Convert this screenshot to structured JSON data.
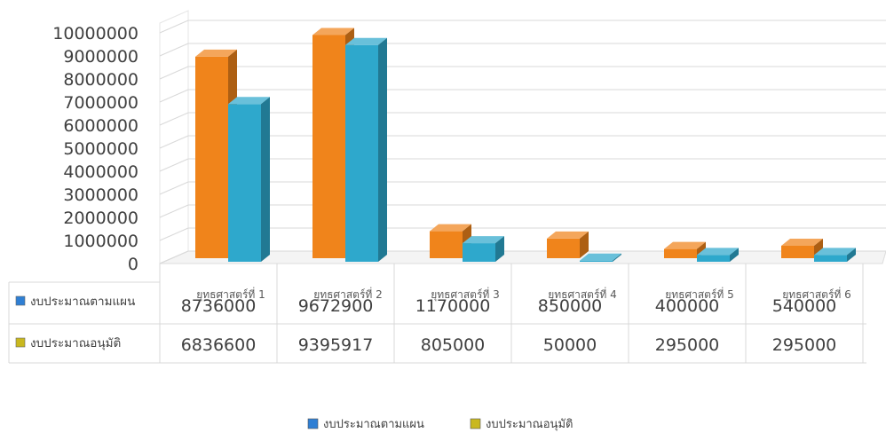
{
  "chart_data": {
    "type": "bar",
    "categories": [
      "ยุทธศาสตร์ที่ 1",
      "ยุทธศาสตร์ที่ 2",
      "ยุทธศาสตร์ที่ 3",
      "ยุทธศาสตร์ที่ 4",
      "ยุทธศาสตร์ที่ 5",
      "ยุทธศาสตร์ที่ 6"
    ],
    "series": [
      {
        "name": "งบประมาณตามแผน",
        "values": [
          8736000,
          9672900,
          1170000,
          850000,
          400000,
          540000
        ],
        "display": [
          "8736000",
          "9672900",
          "1170000",
          "850000",
          "400000",
          "540000"
        ]
      },
      {
        "name": "งบประมาณอนุมัติ",
        "values": [
          6836600,
          9395917,
          805000,
          50000,
          295000,
          295000
        ],
        "display": [
          "6836600",
          "9395917",
          "805000",
          "50000",
          "295000",
          "295000"
        ]
      }
    ],
    "y_ticks": [
      "0",
      "1000000",
      "2000000",
      "3000000",
      "4000000",
      "5000000",
      "6000000",
      "7000000",
      "8000000",
      "9000000",
      "10000000"
    ],
    "ylim": [
      0,
      10000000
    ],
    "bar_colors": [
      "#f0841b",
      "#2ea8cc"
    ],
    "legend_marker_colors": [
      "#2f7fd4",
      "#c9b81f"
    ],
    "grid": true,
    "legend_position": "bottom",
    "data_table": true,
    "style": "3d-clustered-column"
  }
}
